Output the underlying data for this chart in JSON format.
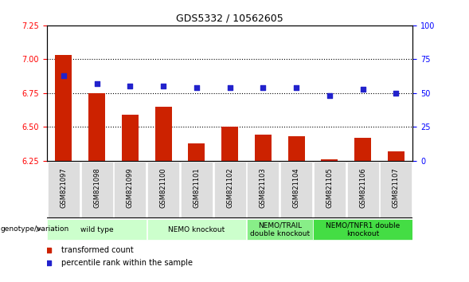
{
  "title": "GDS5332 / 10562605",
  "samples": [
    "GSM821097",
    "GSM821098",
    "GSM821099",
    "GSM821100",
    "GSM821101",
    "GSM821102",
    "GSM821103",
    "GSM821104",
    "GSM821105",
    "GSM821106",
    "GSM821107"
  ],
  "transformed_count": [
    7.03,
    6.75,
    6.59,
    6.65,
    6.38,
    6.5,
    6.44,
    6.43,
    6.26,
    6.42,
    6.32
  ],
  "percentile_rank": [
    63,
    57,
    55,
    55,
    54,
    54,
    54,
    54,
    48,
    53,
    50
  ],
  "ylim_left": [
    6.25,
    7.25
  ],
  "ylim_right": [
    0,
    100
  ],
  "yticks_left": [
    6.25,
    6.5,
    6.75,
    7.0,
    7.25
  ],
  "yticks_right": [
    0,
    25,
    50,
    75,
    100
  ],
  "bar_color": "#cc2200",
  "dot_color": "#2222cc",
  "bar_bottom": 6.25,
  "grid_lines": [
    6.5,
    6.75,
    7.0
  ],
  "group_defs": [
    {
      "start": 0,
      "end": 3,
      "label": "wild type",
      "color": "#ccffcc"
    },
    {
      "start": 3,
      "end": 6,
      "label": "NEMO knockout",
      "color": "#ccffcc"
    },
    {
      "start": 6,
      "end": 8,
      "label": "NEMO/TRAIL\ndouble knockout",
      "color": "#88ee88"
    },
    {
      "start": 8,
      "end": 11,
      "label": "NEMO/TNFR1 double\nknockout",
      "color": "#44dd44"
    }
  ],
  "legend_items": [
    {
      "label": "transformed count",
      "color": "#cc2200"
    },
    {
      "label": "percentile rank within the sample",
      "color": "#2222cc"
    }
  ],
  "genotype_label": "genotype/variation"
}
